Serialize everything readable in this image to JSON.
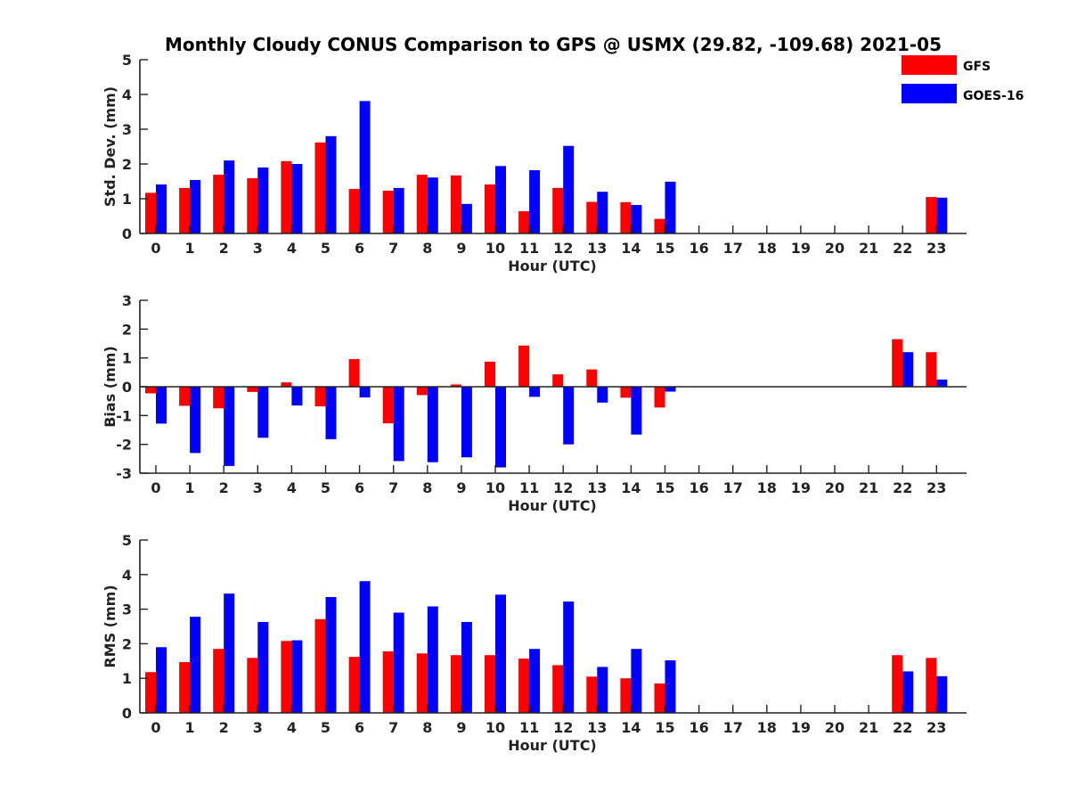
{
  "title": "Monthly Cloudy CONUS Comparison to GPS @ USMX (29.82, -109.68) 2021-05",
  "legend": [
    {
      "name": "GFS",
      "color": "#ff0000"
    },
    {
      "name": "GOES-16",
      "color": "#0000ff"
    }
  ],
  "chart_data": [
    {
      "type": "bar",
      "xlabel": "Hour (UTC)",
      "ylabel": "Std. Dev. (mm)",
      "ylim": [
        0,
        5
      ],
      "yticks": [
        0,
        1,
        2,
        3,
        4,
        5
      ],
      "categories": [
        "0",
        "1",
        "2",
        "3",
        "4",
        "5",
        "6",
        "7",
        "8",
        "9",
        "10",
        "11",
        "12",
        "13",
        "14",
        "15",
        "16",
        "17",
        "18",
        "19",
        "20",
        "21",
        "22",
        "23"
      ],
      "series": [
        {
          "name": "GFS",
          "color": "#ff0000",
          "values": [
            1.17,
            1.31,
            1.69,
            1.59,
            2.08,
            2.62,
            1.28,
            1.23,
            1.69,
            1.67,
            1.41,
            0.64,
            1.31,
            0.91,
            0.9,
            0.42,
            null,
            null,
            null,
            null,
            null,
            null,
            null,
            1.05
          ]
        },
        {
          "name": "GOES-16",
          "color": "#0000ff",
          "values": [
            1.41,
            1.54,
            2.1,
            1.9,
            2.0,
            2.8,
            3.81,
            1.31,
            1.61,
            0.85,
            1.94,
            1.82,
            2.52,
            1.2,
            0.82,
            1.49,
            null,
            null,
            null,
            null,
            null,
            null,
            null,
            1.03
          ]
        }
      ]
    },
    {
      "type": "bar",
      "xlabel": "Hour (UTC)",
      "ylabel": "Bias (mm)",
      "ylim": [
        -3,
        3
      ],
      "yticks": [
        -3,
        -2,
        -1,
        0,
        1,
        2,
        3
      ],
      "categories": [
        "0",
        "1",
        "2",
        "3",
        "4",
        "5",
        "6",
        "7",
        "8",
        "9",
        "10",
        "11",
        "12",
        "13",
        "14",
        "15",
        "16",
        "17",
        "18",
        "19",
        "20",
        "21",
        "22",
        "23"
      ],
      "series": [
        {
          "name": "GFS",
          "color": "#ff0000",
          "values": [
            -0.23,
            -0.66,
            -0.75,
            -0.18,
            0.15,
            -0.68,
            0.96,
            -1.27,
            -0.29,
            0.08,
            0.87,
            1.43,
            0.43,
            0.6,
            -0.38,
            -0.72,
            null,
            null,
            null,
            null,
            null,
            null,
            1.65,
            1.2
          ]
        },
        {
          "name": "GOES-16",
          "color": "#0000ff",
          "values": [
            -1.28,
            -2.3,
            -2.75,
            -1.77,
            -0.65,
            -1.82,
            -0.37,
            -2.58,
            -2.62,
            -2.45,
            -2.8,
            -0.35,
            -2.0,
            -0.55,
            -1.66,
            -0.17,
            null,
            null,
            null,
            null,
            null,
            null,
            1.2,
            0.25
          ]
        }
      ]
    },
    {
      "type": "bar",
      "xlabel": "Hour (UTC)",
      "ylabel": "RMS (mm)",
      "ylim": [
        0,
        5
      ],
      "yticks": [
        0,
        1,
        2,
        3,
        4,
        5
      ],
      "categories": [
        "0",
        "1",
        "2",
        "3",
        "4",
        "5",
        "6",
        "7",
        "8",
        "9",
        "10",
        "11",
        "12",
        "13",
        "14",
        "15",
        "16",
        "17",
        "18",
        "19",
        "20",
        "21",
        "22",
        "23"
      ],
      "series": [
        {
          "name": "GFS",
          "color": "#ff0000",
          "values": [
            1.18,
            1.47,
            1.85,
            1.59,
            2.08,
            2.71,
            1.62,
            1.78,
            1.72,
            1.67,
            1.67,
            1.57,
            1.38,
            1.05,
            1.0,
            0.85,
            null,
            null,
            null,
            null,
            null,
            null,
            1.67,
            1.59
          ]
        },
        {
          "name": "GOES-16",
          "color": "#0000ff",
          "values": [
            1.9,
            2.78,
            3.45,
            2.63,
            2.1,
            3.35,
            3.81,
            2.9,
            3.08,
            2.63,
            3.42,
            1.85,
            3.22,
            1.33,
            1.85,
            1.52,
            null,
            null,
            null,
            null,
            null,
            null,
            1.2,
            1.06
          ]
        }
      ]
    }
  ]
}
